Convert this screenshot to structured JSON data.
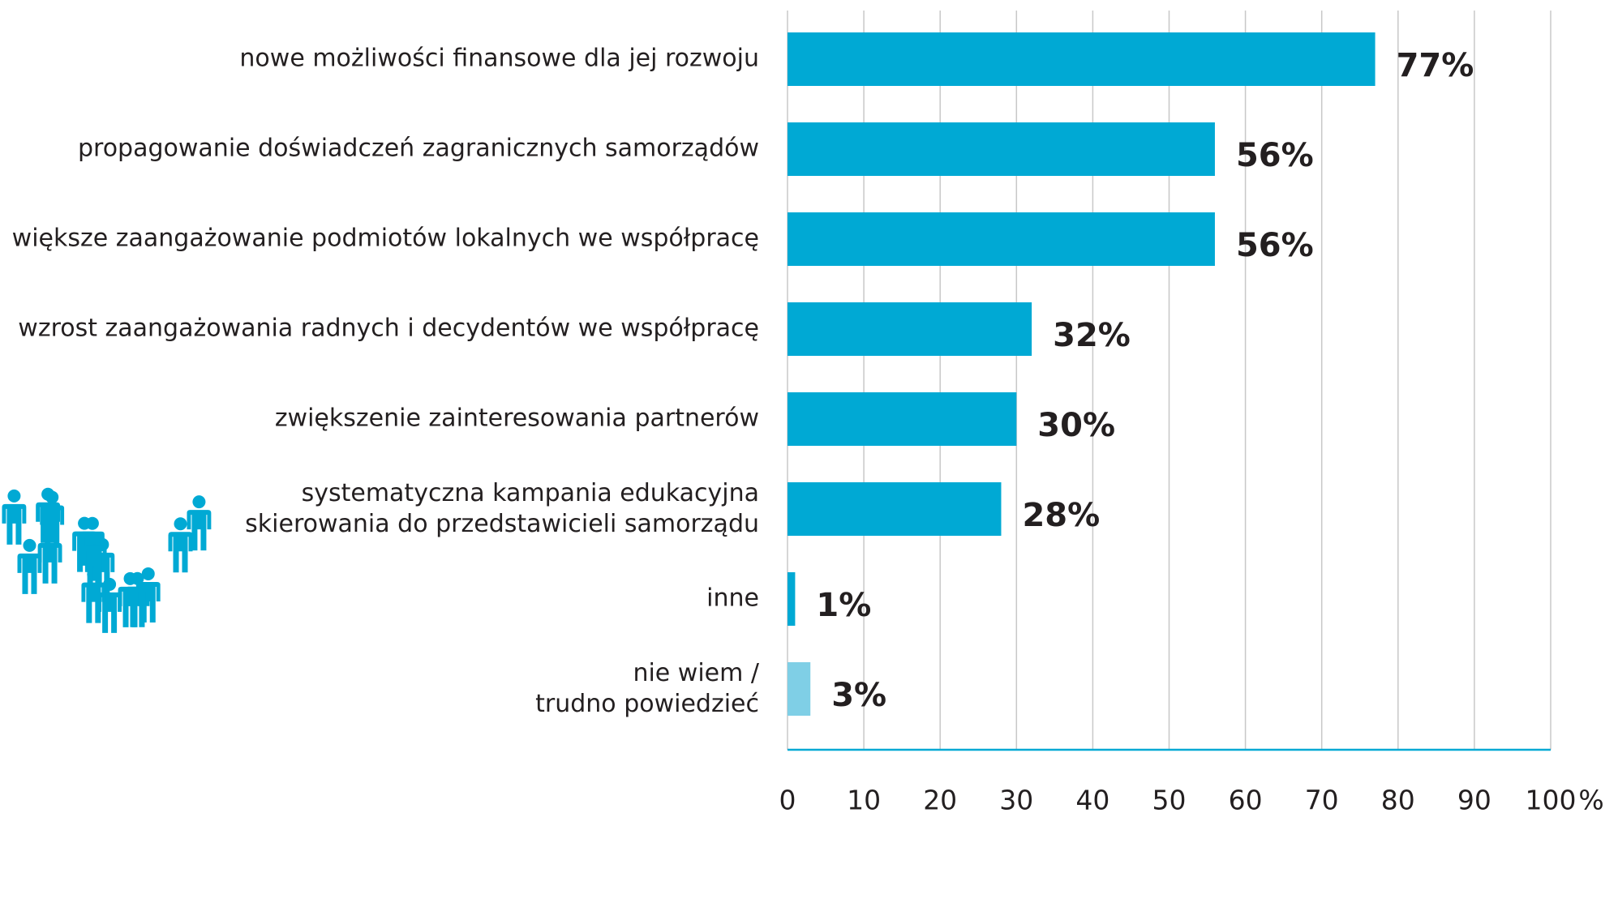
{
  "chart_data": {
    "type": "hbar",
    "categories": [
      "nowe możliwości finansowe dla jej rozwoju",
      "propagowanie doświadczeń zagranicznych samorządów",
      "większe zaangażowanie podmiotów lokalnych we współpracę",
      "wzrost zaangażowania radnych i decydentów we współpracę",
      "zwiększenie zainteresowania partnerów",
      "systematyczna kampania edukacyjna\nskierowania do przedstawicieli samorządu",
      "inne",
      "nie wiem /\ntrudno powiedzieć"
    ],
    "values": [
      77,
      56,
      56,
      32,
      30,
      28,
      1,
      3
    ],
    "value_labels": [
      "77%",
      "56%",
      "56%",
      "32%",
      "30%",
      "28%",
      "1%",
      "3%"
    ],
    "colors": [
      "#00a9d4",
      "#00a9d4",
      "#00a9d4",
      "#00a9d4",
      "#00a9d4",
      "#00a9d4",
      "#00a9d4",
      "#7fcfe6"
    ],
    "xlim": [
      0,
      100
    ],
    "xticks": [
      0,
      10,
      20,
      30,
      40,
      50,
      60,
      70,
      80,
      90,
      100
    ],
    "x_unit": "%",
    "grid": true
  }
}
